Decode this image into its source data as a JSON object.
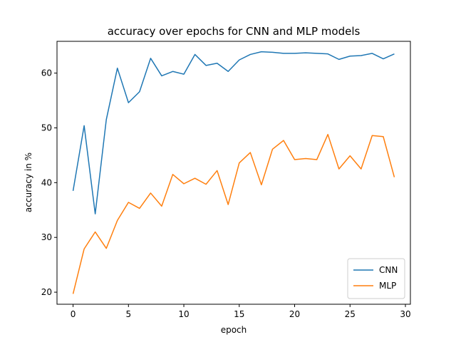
{
  "chart_data": {
    "type": "line",
    "title": "accuracy over epochs for CNN and MLP models",
    "xlabel": "epoch",
    "ylabel": "accuracy in %",
    "xlim": [
      -1.45,
      30.45
    ],
    "ylim": [
      17.8,
      65.8
    ],
    "xticks": [
      0,
      5,
      10,
      15,
      20,
      25,
      30
    ],
    "yticks": [
      20,
      30,
      40,
      50,
      60
    ],
    "legend_position": "lower-right",
    "grid": false,
    "x": [
      0,
      1,
      2,
      3,
      4,
      5,
      6,
      7,
      8,
      9,
      10,
      11,
      12,
      13,
      14,
      15,
      16,
      17,
      18,
      19,
      20,
      21,
      22,
      23,
      24,
      25,
      26,
      27,
      28,
      29
    ],
    "series": [
      {
        "name": "CNN",
        "color": "#1f77b4",
        "values": [
          38.5,
          50.4,
          34.3,
          51.5,
          60.9,
          54.6,
          56.6,
          62.7,
          59.5,
          60.3,
          59.8,
          63.4,
          61.4,
          61.8,
          60.3,
          62.4,
          63.4,
          63.9,
          63.8,
          63.6,
          63.6,
          63.7,
          63.6,
          63.5,
          62.5,
          63.1,
          63.2,
          63.6,
          62.6,
          63.5
        ]
      },
      {
        "name": "MLP",
        "color": "#ff7f0e",
        "values": [
          19.7,
          27.9,
          31.0,
          28.0,
          33.1,
          36.4,
          35.3,
          38.1,
          35.7,
          41.5,
          39.8,
          40.8,
          39.7,
          42.2,
          36.0,
          43.6,
          45.5,
          39.6,
          46.1,
          47.7,
          44.2,
          44.4,
          44.2,
          48.8,
          42.5,
          44.9,
          42.5,
          48.6,
          48.4,
          41.0
        ]
      }
    ]
  }
}
